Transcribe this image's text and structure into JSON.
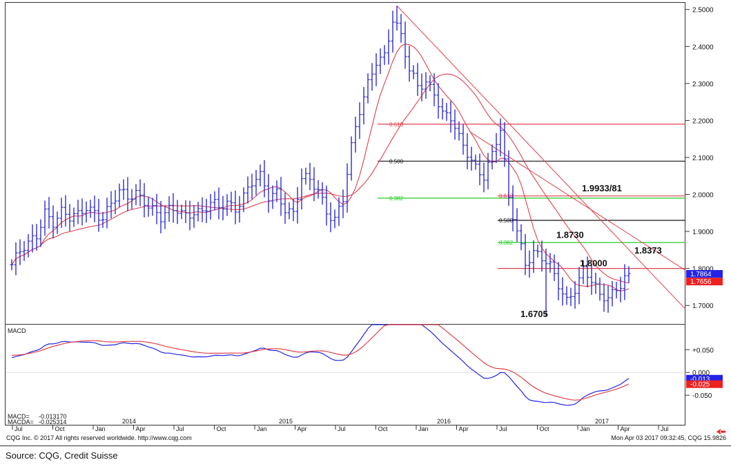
{
  "source_note": "Source: CQG, Credit Suisse",
  "footer": {
    "left": "CQG Inc. © 2017 All rights reserved worldwide. http://www.cqg.com",
    "right": "Mon Apr 03 2017 09:32:45, CQG 15.9826"
  },
  "colors": {
    "price_bars": "#2b2bd6",
    "moving_averages": "#e0404a",
    "trendlines": "#e0404a",
    "fib_0618": "#e0404a",
    "fib_0500": "#111111",
    "fib_0382": "#22cc22",
    "last_price_box": "#2323e6",
    "ma_value_box": "#ee2020"
  },
  "chart_data": [
    {
      "type": "line",
      "panel": "price",
      "y_scale": [
        1.65,
        2.52
      ],
      "y_ticks": [
        "2.5000",
        "2.4000",
        "2.3000",
        "2.2000",
        "2.1000",
        "2.0000",
        "1.9000",
        "1.8000",
        "1.7000"
      ],
      "x_ticks": [
        "Jul",
        "Oct",
        "Jan",
        "Apr",
        "Jul",
        "Oct",
        "Jan",
        "Apr",
        "Jul",
        "Oct",
        "Jan",
        "Apr",
        "Jul",
        "Oct",
        "Jan",
        "Apr",
        "Jul"
      ],
      "year_labels": [
        "2014",
        "2015",
        "2016",
        "2017"
      ],
      "series": [
        {
          "style": "ohlc-bars",
          "anchors_close": [
            [
              0,
              1.81
            ],
            [
              2,
              1.84
            ],
            [
              4,
              1.86
            ],
            [
              6,
              1.89
            ],
            [
              8,
              1.96
            ],
            [
              10,
              1.93
            ],
            [
              12,
              1.95
            ],
            [
              14,
              1.93
            ],
            [
              16,
              1.94
            ],
            [
              18,
              1.97
            ],
            [
              20,
              1.96
            ],
            [
              22,
              1.94
            ],
            [
              24,
              1.97
            ],
            [
              26,
              2.0
            ],
            [
              28,
              1.99
            ],
            [
              30,
              2.01
            ],
            [
              32,
              1.99
            ],
            [
              34,
              1.96
            ],
            [
              36,
              1.93
            ],
            [
              38,
              1.95
            ],
            [
              40,
              1.96
            ],
            [
              42,
              1.95
            ],
            [
              44,
              1.96
            ],
            [
              46,
              1.95
            ],
            [
              48,
              1.97
            ],
            [
              50,
              1.96
            ],
            [
              52,
              1.98
            ],
            [
              54,
              1.97
            ],
            [
              56,
              2.0
            ],
            [
              58,
              2.03
            ],
            [
              60,
              2.04
            ],
            [
              62,
              1.99
            ],
            [
              64,
              2.01
            ],
            [
              66,
              1.97
            ],
            [
              68,
              1.95
            ],
            [
              70,
              2.04
            ],
            [
              72,
              2.03
            ],
            [
              74,
              2.01
            ],
            [
              76,
              1.96
            ],
            [
              78,
              1.94
            ],
            [
              80,
              1.99
            ],
            [
              82,
              2.12
            ],
            [
              84,
              2.22
            ],
            [
              86,
              2.3
            ],
            [
              88,
              2.37
            ],
            [
              90,
              2.38
            ],
            [
              92,
              2.47
            ],
            [
              94,
              2.42
            ],
            [
              96,
              2.33
            ],
            [
              98,
              2.3
            ],
            [
              100,
              2.31
            ],
            [
              102,
              2.28
            ],
            [
              104,
              2.21
            ],
            [
              106,
              2.2
            ],
            [
              108,
              2.15
            ],
            [
              110,
              2.12
            ],
            [
              112,
              2.08
            ],
            [
              114,
              2.05
            ],
            [
              116,
              2.1
            ],
            [
              118,
              2.17
            ],
            [
              120,
              1.99
            ],
            [
              122,
              1.91
            ],
            [
              124,
              1.82
            ],
            [
              126,
              1.84
            ],
            [
              128,
              1.82
            ],
            [
              130,
              1.8
            ],
            [
              132,
              1.76
            ],
            [
              134,
              1.72
            ],
            [
              136,
              1.75
            ],
            [
              138,
              1.79
            ],
            [
              140,
              1.76
            ],
            [
              142,
              1.72
            ],
            [
              144,
              1.73
            ],
            [
              146,
              1.75
            ],
            [
              148,
              1.78
            ],
            [
              149,
              1.786
            ]
          ],
          "highlights": [
            [
              93,
              2.51
            ],
            [
              129,
              1.6705
            ]
          ]
        },
        {
          "style": "moving-average-fast"
        },
        {
          "style": "moving-average-slow"
        }
      ],
      "horizontal_levels": [
        {
          "value": 2.19,
          "label": "0.618",
          "color": "#e0404a"
        },
        {
          "value": 2.09,
          "label": "0.500",
          "color": "#111111"
        },
        {
          "value": 1.99,
          "label": "0.382",
          "color": "#22cc22"
        },
        {
          "value": 1.996,
          "label": "0.618",
          "color": "#e0404a"
        },
        {
          "value": 1.93,
          "label": "0.500",
          "color": "#111111"
        },
        {
          "value": 1.87,
          "label": "0.382",
          "color": "#22cc22"
        },
        {
          "value": 1.8,
          "label": "",
          "color": "#e0404a"
        }
      ],
      "annotations": [
        "1.9933/81",
        "1.8730",
        "1.8373",
        "1.8000",
        "1.6705"
      ],
      "last_price": "1.7864",
      "ma_value": "1.7656"
    },
    {
      "type": "line",
      "panel": "macd",
      "title": "MACD",
      "y_scale": [
        -0.115,
        0.105
      ],
      "y_ticks": [
        "+0.050",
        "0.000",
        "-0.050"
      ],
      "series": [
        {
          "name": "MACD",
          "color": "#2323e6"
        },
        {
          "name": "MACDA",
          "color": "#e0404a"
        }
      ],
      "macd_value": "-0.013170",
      "macda_value": "-0.025314",
      "macd_box": "-0.013",
      "macda_box": "-0.025",
      "macd_labels": [
        "MACD=",
        "MACDA="
      ]
    }
  ]
}
